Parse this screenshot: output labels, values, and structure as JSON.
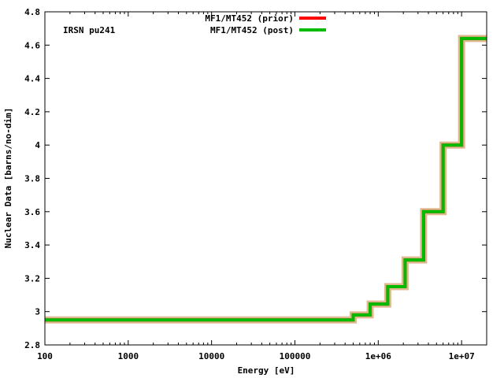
{
  "chart_data": {
    "type": "line",
    "title": "",
    "annotation": "IRSN pu241",
    "xlabel": "Energy [eV]",
    "ylabel": "Nuclear Data [barns/no-dim]",
    "xscale": "log",
    "xlim": [
      100,
      20000000
    ],
    "ylim": [
      2.8,
      4.8
    ],
    "x_tick_labels": [
      "100",
      "1000",
      "10000",
      "100000",
      "1e+06",
      "1e+07"
    ],
    "x_tick_values": [
      100,
      1000,
      10000,
      100000,
      1000000,
      10000000
    ],
    "y_tick_labels": [
      "2.8",
      "3",
      "3.2",
      "3.4",
      "3.6",
      "3.8",
      "4",
      "4.2",
      "4.4",
      "4.6",
      "4.8"
    ],
    "y_tick_values": [
      2.8,
      3.0,
      3.2,
      3.4,
      3.6,
      3.8,
      4.0,
      4.2,
      4.4,
      4.6,
      4.8
    ],
    "grid": false,
    "legend_position": "top-center",
    "step": true,
    "series": [
      {
        "name": "MF1/MT452 (prior)",
        "color": "#ff0000",
        "x": [
          100,
          500000,
          800000,
          1300000,
          2100000,
          3500000,
          6000000,
          10000000,
          20000000
        ],
        "y": [
          2.95,
          2.98,
          3.045,
          3.15,
          3.31,
          3.6,
          4.0,
          4.64,
          4.64
        ]
      },
      {
        "name": "MF1/MT452 (post)",
        "color": "#00bb00",
        "x": [
          100,
          500000,
          800000,
          1300000,
          2100000,
          3500000,
          6000000,
          10000000,
          20000000
        ],
        "y": [
          2.95,
          2.98,
          3.045,
          3.15,
          3.31,
          3.6,
          4.0,
          4.64,
          4.64
        ]
      }
    ],
    "uncertainty_band_color": "#e0b890"
  }
}
